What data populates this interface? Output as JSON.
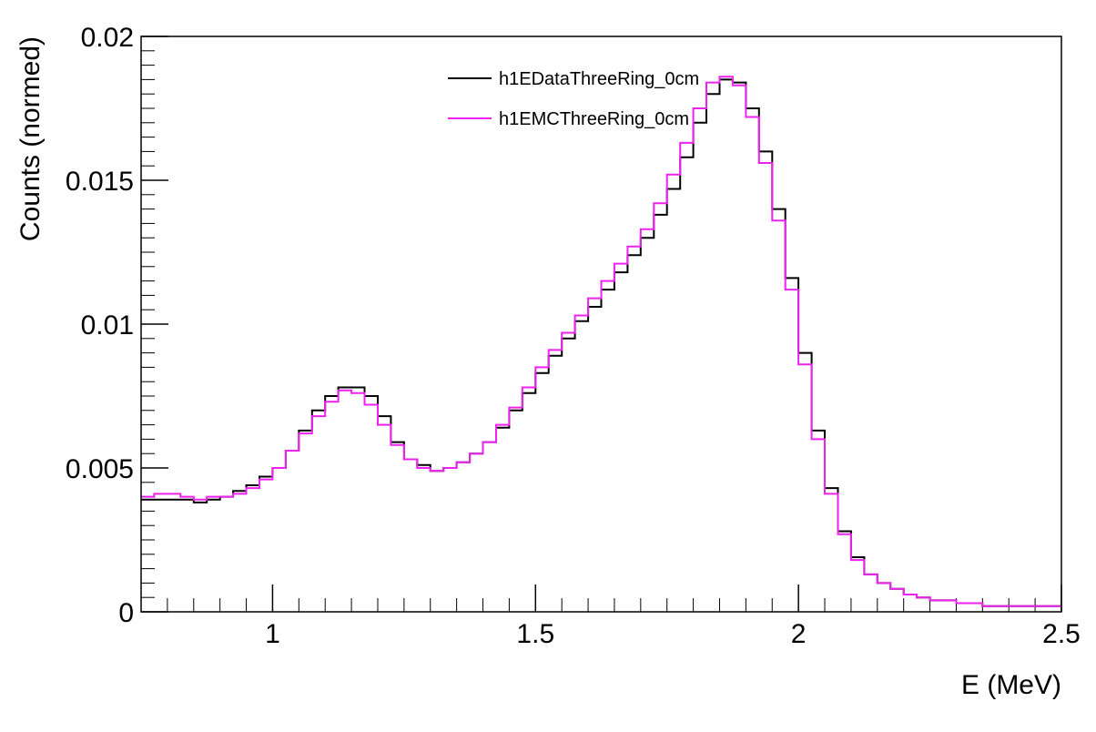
{
  "chart_data": {
    "type": "line",
    "style": "step-histogram",
    "xlabel": "E (MeV)",
    "ylabel": "Counts (normed)",
    "xlim": [
      0.75,
      2.5
    ],
    "ylim": [
      0,
      0.02
    ],
    "x_ticks": [
      1,
      1.5,
      2,
      2.5
    ],
    "x_tick_labels": [
      "1",
      "1.5",
      "2",
      "2.5"
    ],
    "y_ticks": [
      0,
      0.005,
      0.01,
      0.015,
      0.02
    ],
    "y_tick_labels": [
      "0",
      "0.005",
      "0.01",
      "0.015",
      "0.02"
    ],
    "x": [
      0.75,
      0.775,
      0.8,
      0.825,
      0.85,
      0.875,
      0.9,
      0.925,
      0.95,
      0.975,
      1.0,
      1.025,
      1.05,
      1.075,
      1.1,
      1.125,
      1.15,
      1.175,
      1.2,
      1.225,
      1.25,
      1.275,
      1.3,
      1.325,
      1.35,
      1.375,
      1.4,
      1.425,
      1.45,
      1.475,
      1.5,
      1.525,
      1.55,
      1.575,
      1.6,
      1.625,
      1.65,
      1.675,
      1.7,
      1.725,
      1.75,
      1.775,
      1.8,
      1.825,
      1.85,
      1.875,
      1.9,
      1.925,
      1.95,
      1.975,
      2.0,
      2.025,
      2.05,
      2.075,
      2.1,
      2.125,
      2.15,
      2.175,
      2.2,
      2.225,
      2.25,
      2.3,
      2.35,
      2.4,
      2.45,
      2.5
    ],
    "series": [
      {
        "name": "h1EDataThreeRing_0cm",
        "color": "#000000",
        "values": [
          0.0039,
          0.0039,
          0.0039,
          0.0039,
          0.0038,
          0.0039,
          0.004,
          0.0042,
          0.0044,
          0.0047,
          0.005,
          0.0056,
          0.0063,
          0.007,
          0.0075,
          0.0078,
          0.0078,
          0.0075,
          0.0068,
          0.0059,
          0.0053,
          0.0051,
          0.0049,
          0.005,
          0.0052,
          0.0055,
          0.0059,
          0.0064,
          0.007,
          0.0076,
          0.0083,
          0.0089,
          0.0095,
          0.0101,
          0.0106,
          0.0112,
          0.0118,
          0.0124,
          0.013,
          0.0138,
          0.0147,
          0.0158,
          0.017,
          0.018,
          0.0185,
          0.0184,
          0.0175,
          0.016,
          0.014,
          0.0116,
          0.009,
          0.0063,
          0.0043,
          0.0028,
          0.0019,
          0.0013,
          0.001,
          0.0008,
          0.0006,
          0.0005,
          0.0004,
          0.0003,
          0.0002,
          0.0002,
          0.0002,
          0.00015
        ]
      },
      {
        "name": "h1EMCThreeRing_0cm",
        "color": "#ee22ee",
        "values": [
          0.004,
          0.0041,
          0.0041,
          0.004,
          0.0039,
          0.004,
          0.004,
          0.0041,
          0.0043,
          0.0046,
          0.005,
          0.0056,
          0.0062,
          0.0068,
          0.0073,
          0.0077,
          0.0076,
          0.0072,
          0.0065,
          0.0058,
          0.0053,
          0.005,
          0.0049,
          0.005,
          0.0052,
          0.0055,
          0.0059,
          0.0065,
          0.0071,
          0.0078,
          0.0085,
          0.0091,
          0.0097,
          0.0103,
          0.0109,
          0.0115,
          0.0121,
          0.0127,
          0.0133,
          0.0142,
          0.0152,
          0.0163,
          0.0175,
          0.0184,
          0.0186,
          0.0183,
          0.0172,
          0.0156,
          0.0136,
          0.0112,
          0.0086,
          0.006,
          0.0041,
          0.0027,
          0.0018,
          0.0013,
          0.001,
          0.0008,
          0.0006,
          0.0005,
          0.0004,
          0.0003,
          0.0002,
          0.0002,
          0.0002,
          0.00015
        ]
      }
    ]
  }
}
